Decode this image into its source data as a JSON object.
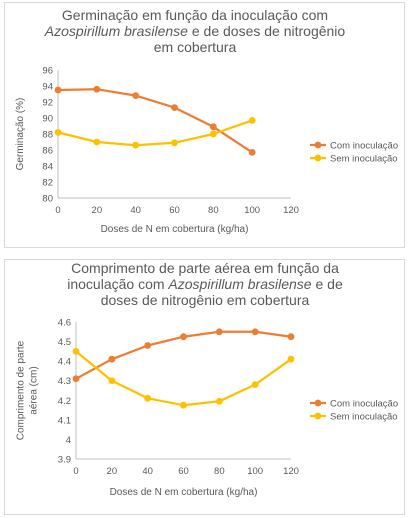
{
  "colors": {
    "com": "#ED7D31",
    "sem": "#FFC000",
    "axis": "#bfbfbf",
    "text": "#595959"
  },
  "chart_data": [
    {
      "type": "line",
      "title_lines": [
        [
          {
            "text": "Germinação em função da inoculação com",
            "italic": false
          }
        ],
        [
          {
            "text": "Azospirillum brasilense",
            "italic": true
          },
          {
            "text": " e de doses de nitrogênio",
            "italic": false
          }
        ],
        [
          {
            "text": "em cobertura",
            "italic": false
          }
        ]
      ],
      "xlabel": "Doses de N em cobertura (kg/ha)",
      "ylabel_lines": [
        "Germinação (%)"
      ],
      "xlim": [
        0,
        120
      ],
      "xticks": [
        0,
        20,
        40,
        60,
        80,
        100,
        120
      ],
      "ylim": [
        80,
        96
      ],
      "yticks": [
        80,
        82,
        84,
        86,
        88,
        90,
        92,
        94,
        96
      ],
      "ytick_labels": [
        "80",
        "82",
        "84",
        "86",
        "88",
        "90",
        "92",
        "94",
        "96"
      ],
      "grid": false,
      "legend": "right",
      "series": [
        {
          "name": "Com inoculação",
          "x": [
            0,
            20,
            40,
            60,
            80,
            100
          ],
          "values": [
            93.5,
            93.6,
            92.8,
            91.3,
            88.9,
            85.7
          ]
        },
        {
          "name": "Sem inoculação",
          "x": [
            0,
            20,
            40,
            60,
            80,
            100
          ],
          "values": [
            88.2,
            87.0,
            86.6,
            86.9,
            88.0,
            89.7
          ]
        }
      ]
    },
    {
      "type": "line",
      "title_lines": [
        [
          {
            "text": "Comprimento de parte aérea em função da",
            "italic": false
          }
        ],
        [
          {
            "text": "inoculação com ",
            "italic": false
          },
          {
            "text": "Azospirillum brasilense",
            "italic": true
          },
          {
            "text": " e de",
            "italic": false
          }
        ],
        [
          {
            "text": "doses de nitrogênio em cobertura",
            "italic": false
          }
        ]
      ],
      "xlabel": "Doses de N em cobertura (kg/ha)",
      "ylabel_lines": [
        "Comprimento de parte",
        "aérea (cm)"
      ],
      "xlim": [
        0,
        120
      ],
      "xticks": [
        0,
        20,
        40,
        60,
        80,
        100,
        120
      ],
      "ylim": [
        3.9,
        4.6
      ],
      "yticks": [
        3.9,
        4.0,
        4.1,
        4.2,
        4.3,
        4.4,
        4.5,
        4.6
      ],
      "ytick_labels": [
        "3.9",
        "4",
        "4.1",
        "4.2",
        "4.3",
        "4.4",
        "4.5",
        "4.6"
      ],
      "grid": false,
      "legend": "right",
      "series": [
        {
          "name": "Com inoculação",
          "x": [
            0,
            20,
            40,
            60,
            80,
            100,
            120
          ],
          "values": [
            4.31,
            4.41,
            4.48,
            4.525,
            4.55,
            4.55,
            4.525
          ]
        },
        {
          "name": "Sem inoculação",
          "x": [
            0,
            20,
            40,
            60,
            80,
            100,
            120
          ],
          "values": [
            4.45,
            4.3,
            4.21,
            4.175,
            4.195,
            4.28,
            4.41
          ]
        }
      ]
    }
  ]
}
